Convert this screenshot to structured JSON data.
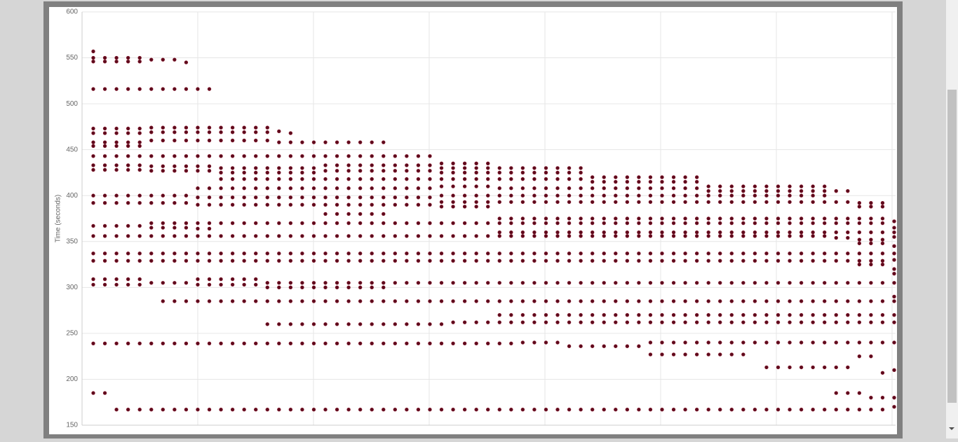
{
  "chart_data": {
    "type": "scatter",
    "y_label": "Time (seconds)",
    "color": "#5c0a1c",
    "ylim": [
      150,
      600
    ],
    "yticks": [
      150,
      200,
      250,
      300,
      350,
      400,
      450,
      500,
      550,
      600
    ],
    "grid": true,
    "categories": [
      null,
      null,
      null,
      null,
      null,
      null,
      null,
      null,
      null,
      null,
      null,
      null,
      null,
      null,
      null,
      null,
      null,
      null,
      null,
      null,
      null,
      null,
      null,
      null,
      null,
      null,
      null,
      null,
      null,
      null,
      null,
      null,
      null,
      null,
      null,
      null,
      null,
      null,
      null,
      null,
      null,
      null,
      null,
      null,
      null,
      null,
      null,
      null,
      null,
      null,
      null,
      null,
      null,
      null,
      null,
      null,
      null,
      null,
      null,
      null,
      null,
      null,
      null,
      null,
      null,
      null,
      null,
      null,
      null,
      null
    ],
    "values": [
      [
        557,
        550,
        546,
        516,
        473,
        468,
        458,
        454,
        443,
        433,
        428,
        400,
        392,
        367,
        356,
        337,
        329,
        309,
        303,
        239,
        185
      ],
      [
        550,
        546,
        516,
        473,
        468,
        458,
        454,
        443,
        433,
        428,
        400,
        392,
        367,
        356,
        337,
        329,
        309,
        303,
        239,
        185
      ],
      [
        550,
        546,
        516,
        473,
        468,
        458,
        454,
        443,
        433,
        428,
        400,
        392,
        367,
        356,
        337,
        329,
        309,
        303,
        239,
        167
      ],
      [
        550,
        546,
        516,
        473,
        468,
        458,
        454,
        443,
        433,
        428,
        400,
        392,
        367,
        356,
        337,
        329,
        309,
        303,
        239,
        167
      ],
      [
        550,
        546,
        516,
        473,
        468,
        458,
        454,
        443,
        433,
        428,
        400,
        392,
        367,
        356,
        337,
        329,
        309,
        303,
        239,
        167
      ],
      [
        548,
        516,
        474,
        469,
        460,
        443,
        432,
        427,
        400,
        392,
        370,
        365,
        356,
        337,
        329,
        305,
        239,
        167
      ],
      [
        548,
        516,
        474,
        469,
        460,
        443,
        432,
        427,
        400,
        392,
        370,
        365,
        356,
        337,
        329,
        305,
        285,
        239,
        167
      ],
      [
        548,
        516,
        474,
        469,
        460,
        443,
        432,
        427,
        400,
        392,
        370,
        365,
        356,
        337,
        329,
        305,
        285,
        239,
        167
      ],
      [
        545,
        516,
        474,
        469,
        460,
        443,
        432,
        427,
        400,
        392,
        370,
        365,
        356,
        337,
        329,
        305,
        285,
        239,
        167
      ],
      [
        516,
        474,
        469,
        460,
        443,
        432,
        427,
        408,
        398,
        390,
        370,
        364,
        356,
        337,
        329,
        309,
        303,
        285,
        239,
        167
      ],
      [
        516,
        474,
        469,
        460,
        443,
        432,
        427,
        408,
        398,
        390,
        370,
        364,
        356,
        337,
        329,
        309,
        303,
        285,
        239,
        167
      ],
      [
        474,
        469,
        460,
        443,
        430,
        425,
        418,
        408,
        398,
        390,
        370,
        356,
        337,
        329,
        309,
        303,
        285,
        239,
        167
      ],
      [
        474,
        469,
        460,
        443,
        430,
        425,
        418,
        408,
        398,
        390,
        370,
        356,
        337,
        329,
        309,
        303,
        285,
        239,
        167
      ],
      [
        474,
        469,
        460,
        443,
        430,
        425,
        418,
        408,
        398,
        390,
        370,
        356,
        337,
        329,
        309,
        303,
        285,
        239,
        167
      ],
      [
        474,
        469,
        460,
        443,
        430,
        425,
        418,
        408,
        398,
        390,
        370,
        356,
        337,
        329,
        309,
        303,
        285,
        239,
        167
      ],
      [
        474,
        469,
        460,
        443,
        430,
        425,
        418,
        408,
        398,
        390,
        370,
        356,
        337,
        329,
        305,
        300,
        285,
        260,
        239,
        167
      ],
      [
        470,
        458,
        443,
        430,
        425,
        418,
        408,
        398,
        390,
        370,
        356,
        337,
        329,
        305,
        300,
        285,
        260,
        239,
        167
      ],
      [
        468,
        458,
        443,
        430,
        425,
        418,
        408,
        398,
        390,
        370,
        356,
        337,
        329,
        305,
        300,
        285,
        260,
        239,
        167
      ],
      [
        458,
        443,
        430,
        425,
        418,
        408,
        398,
        390,
        370,
        356,
        337,
        329,
        305,
        300,
        285,
        260,
        239,
        167
      ],
      [
        458,
        443,
        430,
        425,
        418,
        408,
        398,
        390,
        370,
        356,
        337,
        329,
        305,
        300,
        285,
        260,
        239,
        167
      ],
      [
        458,
        443,
        433,
        427,
        418,
        408,
        398,
        390,
        380,
        370,
        356,
        337,
        329,
        305,
        300,
        285,
        260,
        239,
        167
      ],
      [
        458,
        443,
        433,
        427,
        418,
        408,
        398,
        390,
        380,
        370,
        356,
        337,
        329,
        305,
        300,
        285,
        260,
        239,
        167
      ],
      [
        458,
        443,
        433,
        427,
        418,
        408,
        398,
        390,
        380,
        370,
        356,
        337,
        329,
        305,
        300,
        285,
        260,
        239,
        167
      ],
      [
        458,
        443,
        433,
        427,
        418,
        408,
        398,
        390,
        380,
        370,
        356,
        337,
        329,
        305,
        300,
        285,
        260,
        239,
        167
      ],
      [
        458,
        443,
        433,
        427,
        418,
        408,
        398,
        390,
        380,
        370,
        356,
        337,
        329,
        305,
        300,
        285,
        260,
        239,
        167
      ],
      [
        458,
        443,
        433,
        427,
        418,
        408,
        398,
        390,
        380,
        370,
        356,
        337,
        329,
        305,
        300,
        285,
        260,
        239,
        167
      ],
      [
        443,
        433,
        427,
        418,
        408,
        398,
        390,
        370,
        356,
        337,
        329,
        305,
        285,
        260,
        239,
        167
      ],
      [
        443,
        433,
        427,
        418,
        408,
        398,
        390,
        370,
        356,
        337,
        329,
        305,
        285,
        260,
        239,
        167
      ],
      [
        443,
        433,
        427,
        418,
        408,
        398,
        390,
        370,
        356,
        337,
        329,
        305,
        285,
        260,
        239,
        167
      ],
      [
        443,
        433,
        427,
        418,
        408,
        398,
        390,
        370,
        356,
        337,
        329,
        305,
        285,
        260,
        239,
        167
      ],
      [
        435,
        430,
        425,
        418,
        410,
        400,
        393,
        388,
        370,
        356,
        337,
        329,
        305,
        285,
        260,
        239,
        167
      ],
      [
        435,
        430,
        425,
        418,
        410,
        400,
        393,
        388,
        370,
        356,
        337,
        329,
        305,
        285,
        262,
        239,
        167
      ],
      [
        435,
        430,
        425,
        418,
        410,
        400,
        393,
        388,
        370,
        356,
        337,
        329,
        305,
        285,
        262,
        239,
        167
      ],
      [
        435,
        430,
        425,
        418,
        410,
        400,
        393,
        388,
        370,
        356,
        337,
        329,
        305,
        285,
        262,
        239,
        167
      ],
      [
        435,
        430,
        425,
        418,
        410,
        400,
        393,
        388,
        370,
        356,
        337,
        329,
        305,
        285,
        262,
        239,
        167
      ],
      [
        430,
        425,
        418,
        408,
        400,
        393,
        375,
        370,
        360,
        356,
        337,
        329,
        305,
        285,
        270,
        262,
        239,
        167
      ],
      [
        430,
        425,
        418,
        408,
        400,
        393,
        375,
        370,
        360,
        356,
        337,
        329,
        305,
        285,
        270,
        262,
        239,
        167
      ],
      [
        430,
        425,
        418,
        408,
        400,
        393,
        375,
        370,
        360,
        356,
        337,
        329,
        305,
        285,
        270,
        262,
        240,
        167
      ],
      [
        430,
        425,
        418,
        408,
        400,
        393,
        375,
        370,
        360,
        356,
        337,
        329,
        305,
        285,
        270,
        262,
        240,
        167
      ],
      [
        430,
        425,
        418,
        408,
        400,
        393,
        375,
        370,
        360,
        356,
        337,
        329,
        305,
        285,
        270,
        262,
        240,
        167
      ],
      [
        430,
        425,
        418,
        408,
        400,
        393,
        375,
        370,
        360,
        356,
        337,
        329,
        305,
        285,
        270,
        262,
        240,
        167
      ],
      [
        430,
        425,
        418,
        408,
        400,
        393,
        375,
        370,
        360,
        356,
        337,
        329,
        305,
        285,
        270,
        262,
        236,
        167
      ],
      [
        430,
        425,
        418,
        408,
        400,
        393,
        375,
        370,
        360,
        356,
        337,
        329,
        305,
        285,
        270,
        262,
        236,
        167
      ],
      [
        420,
        415,
        408,
        400,
        393,
        375,
        370,
        360,
        356,
        337,
        329,
        305,
        285,
        270,
        262,
        236,
        167
      ],
      [
        420,
        415,
        408,
        400,
        393,
        375,
        370,
        360,
        356,
        337,
        329,
        305,
        285,
        270,
        262,
        236,
        167
      ],
      [
        420,
        415,
        408,
        400,
        393,
        375,
        370,
        360,
        356,
        337,
        329,
        305,
        285,
        270,
        262,
        236,
        167
      ],
      [
        420,
        415,
        408,
        400,
        393,
        375,
        370,
        360,
        356,
        337,
        329,
        305,
        285,
        270,
        262,
        236,
        167
      ],
      [
        420,
        415,
        408,
        400,
        393,
        375,
        370,
        360,
        356,
        337,
        329,
        305,
        285,
        270,
        262,
        236,
        167
      ],
      [
        420,
        415,
        408,
        400,
        393,
        375,
        370,
        360,
        356,
        337,
        329,
        305,
        285,
        270,
        262,
        240,
        227,
        167
      ],
      [
        420,
        415,
        408,
        400,
        393,
        375,
        370,
        360,
        356,
        337,
        329,
        305,
        285,
        270,
        262,
        240,
        227,
        167
      ],
      [
        420,
        415,
        408,
        400,
        393,
        375,
        370,
        360,
        356,
        337,
        329,
        305,
        285,
        270,
        262,
        240,
        227,
        167
      ],
      [
        420,
        415,
        408,
        400,
        393,
        375,
        370,
        360,
        356,
        337,
        329,
        305,
        285,
        270,
        262,
        240,
        227,
        167
      ],
      [
        420,
        415,
        408,
        400,
        393,
        375,
        370,
        360,
        356,
        337,
        329,
        305,
        285,
        270,
        262,
        240,
        227,
        167
      ],
      [
        410,
        405,
        400,
        393,
        375,
        370,
        360,
        356,
        337,
        329,
        305,
        285,
        270,
        262,
        240,
        227,
        167
      ],
      [
        410,
        405,
        400,
        393,
        375,
        370,
        360,
        356,
        337,
        329,
        305,
        285,
        270,
        262,
        240,
        227,
        167
      ],
      [
        410,
        405,
        400,
        393,
        375,
        370,
        360,
        356,
        337,
        329,
        305,
        285,
        270,
        262,
        240,
        227,
        167
      ],
      [
        410,
        405,
        400,
        393,
        375,
        370,
        360,
        356,
        337,
        329,
        305,
        285,
        270,
        262,
        240,
        227,
        167
      ],
      [
        410,
        405,
        400,
        393,
        375,
        370,
        360,
        356,
        337,
        329,
        305,
        285,
        270,
        262,
        240,
        167
      ],
      [
        410,
        405,
        400,
        393,
        375,
        370,
        360,
        356,
        337,
        329,
        305,
        285,
        270,
        262,
        240,
        213,
        167
      ],
      [
        410,
        405,
        400,
        393,
        375,
        370,
        360,
        356,
        337,
        329,
        305,
        285,
        270,
        262,
        240,
        213,
        167
      ],
      [
        410,
        405,
        400,
        393,
        375,
        370,
        360,
        356,
        337,
        329,
        305,
        285,
        270,
        262,
        240,
        213,
        167
      ],
      [
        410,
        405,
        400,
        393,
        375,
        370,
        360,
        356,
        337,
        329,
        305,
        285,
        270,
        262,
        240,
        213,
        167
      ],
      [
        410,
        405,
        400,
        393,
        375,
        370,
        360,
        356,
        337,
        329,
        305,
        285,
        270,
        262,
        240,
        213,
        167
      ],
      [
        410,
        405,
        400,
        393,
        375,
        370,
        360,
        356,
        337,
        329,
        305,
        285,
        270,
        262,
        240,
        213,
        167
      ],
      [
        405,
        393,
        375,
        370,
        360,
        354,
        337,
        329,
        305,
        285,
        270,
        262,
        240,
        213,
        185,
        167
      ],
      [
        405,
        393,
        375,
        370,
        360,
        354,
        337,
        329,
        305,
        285,
        270,
        262,
        240,
        213,
        185,
        167
      ],
      [
        392,
        388,
        375,
        370,
        360,
        352,
        348,
        337,
        329,
        325,
        305,
        285,
        270,
        262,
        240,
        225,
        185,
        167
      ],
      [
        392,
        388,
        375,
        370,
        360,
        352,
        348,
        337,
        329,
        325,
        305,
        285,
        270,
        262,
        240,
        225,
        180,
        167
      ],
      [
        392,
        388,
        375,
        370,
        360,
        352,
        348,
        337,
        329,
        325,
        305,
        285,
        270,
        262,
        240,
        207,
        180,
        167
      ],
      [
        372,
        365,
        360,
        355,
        345,
        337,
        330,
        320,
        315,
        305,
        290,
        285,
        270,
        262,
        240,
        210,
        180,
        170
      ]
    ]
  }
}
